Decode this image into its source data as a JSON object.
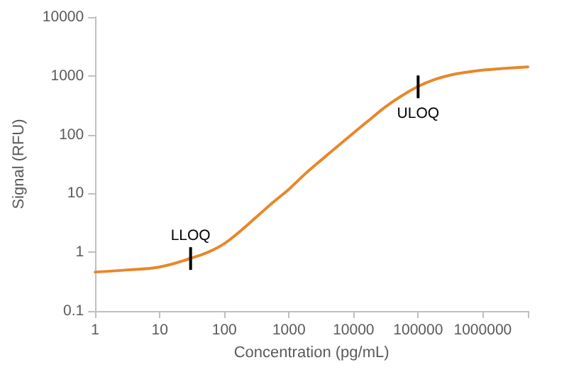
{
  "chart_data": {
    "type": "line",
    "xlabel": "Concentration (pg/mL)",
    "ylabel": "Signal (RFU)",
    "log": "xy",
    "grid": false,
    "marker": "none",
    "line_style": "solid",
    "xlim": [
      1,
      5000000
    ],
    "xticks": [
      1,
      10,
      100,
      1000,
      10000,
      100000,
      1000000
    ],
    "ylim": [
      0.1,
      10000
    ],
    "yticks": [
      0.1,
      1,
      10,
      100,
      1000,
      10000
    ],
    "series": [
      {
        "color": "#e8872a",
        "x": [
          1,
          3.16,
          10,
          31.6,
          56,
          100,
          178,
          316,
          562,
          1000,
          1780,
          3160,
          5620,
          10000,
          17800,
          31600,
          56200,
          100000,
          178000,
          316000,
          562000,
          1000000,
          2000000,
          5000000
        ],
        "values": [
          0.46,
          0.5,
          0.56,
          0.8,
          1.0,
          1.4,
          2.3,
          4.0,
          7.0,
          11.8,
          21.5,
          37,
          63,
          107,
          180,
          300,
          460,
          660,
          860,
          1030,
          1150,
          1250,
          1330,
          1420
        ]
      }
    ],
    "annotations": [
      {
        "text": "LLOQ",
        "x": 30,
        "y": 0.78
      },
      {
        "text": "ULOQ",
        "x": 100000,
        "y": 650
      }
    ]
  }
}
